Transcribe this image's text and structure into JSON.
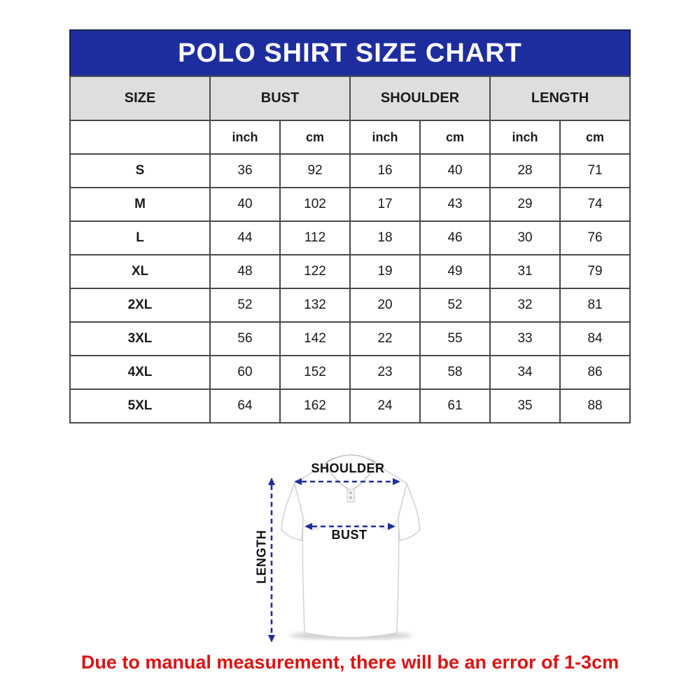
{
  "header": {
    "title": "POLO SHIRT SIZE CHART",
    "bg_color": "#1e2d9e",
    "text_color": "#ffffff"
  },
  "table": {
    "header_bg_color": "#dedede",
    "border_color": "#4a4a4a"
  },
  "chart_data": {
    "type": "table",
    "title": "POLO SHIRT SIZE CHART",
    "column_groups": [
      {
        "label": "SIZE",
        "span": 1
      },
      {
        "label": "BUST",
        "span": 2
      },
      {
        "label": "SHOULDER",
        "span": 2
      },
      {
        "label": "LENGTH",
        "span": 2
      }
    ],
    "unit_row": [
      "inch",
      "cm",
      "inch",
      "cm",
      "inch",
      "cm"
    ],
    "rows": [
      [
        "S",
        36,
        92,
        16,
        40,
        28,
        71
      ],
      [
        "M",
        40,
        102,
        17,
        43,
        29,
        74
      ],
      [
        "L",
        44,
        112,
        18,
        46,
        30,
        76
      ],
      [
        "XL",
        48,
        122,
        19,
        49,
        31,
        79
      ],
      [
        "2XL",
        52,
        132,
        20,
        52,
        32,
        81
      ],
      [
        "3XL",
        56,
        142,
        22,
        55,
        33,
        84
      ],
      [
        "4XL",
        60,
        152,
        23,
        58,
        34,
        86
      ],
      [
        "5XL",
        64,
        162,
        24,
        61,
        35,
        88
      ]
    ]
  },
  "diagram": {
    "shoulder_label": "SHOULDER",
    "bust_label": "BUST",
    "length_label": "LENGTH",
    "arrow_color": "#1c2f9b"
  },
  "note": {
    "text": "Due to manual measurement, there will be an error of 1-3cm",
    "color": "#dd1212"
  }
}
